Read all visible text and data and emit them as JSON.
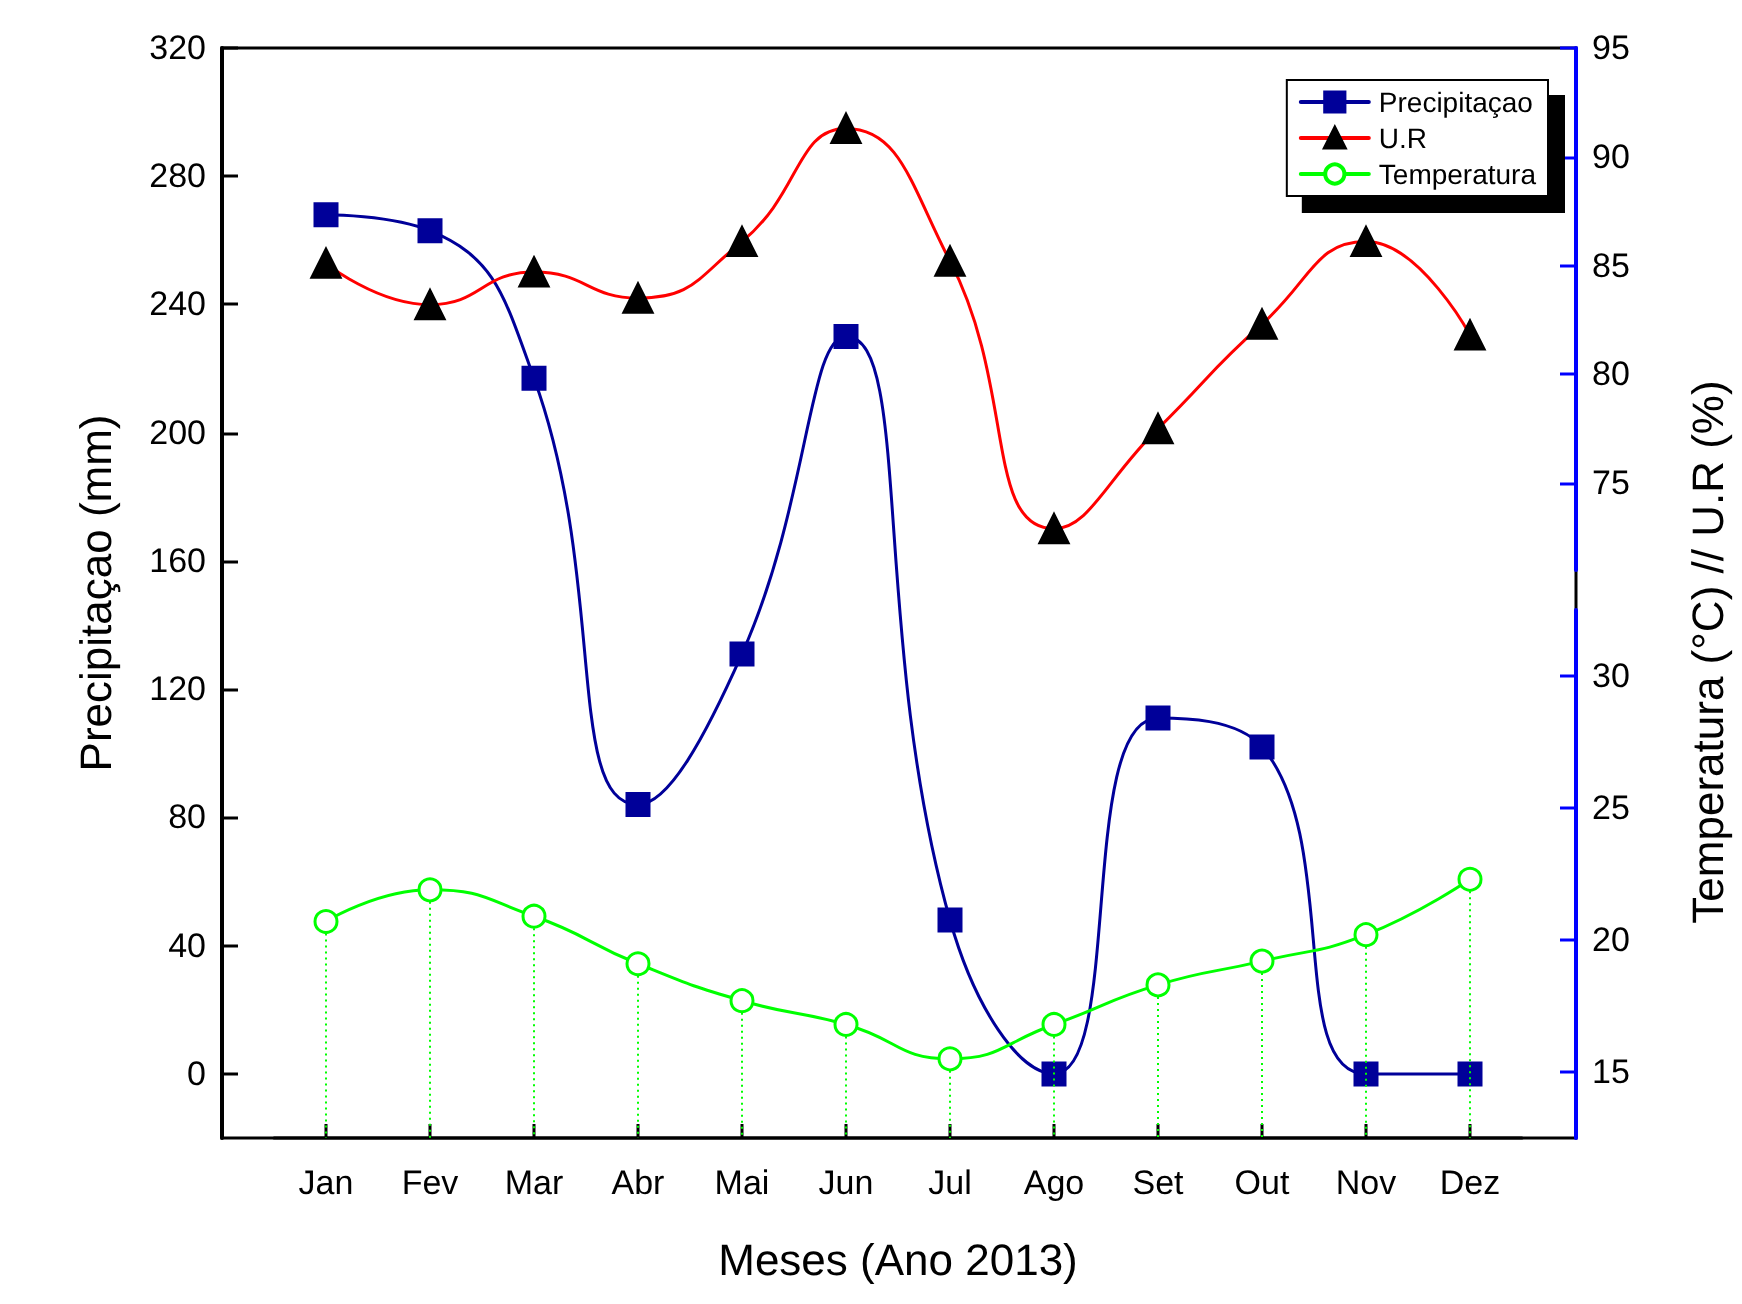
{
  "chart_data": {
    "type": "line",
    "xlabel": "Meses (Ano 2013)",
    "ylabel": "Precipitaçao (mm)",
    "y2label": "Temperatura (°C) // U.R (%)",
    "categories": [
      "Jan",
      "Fev",
      "Mar",
      "Abr",
      "Mai",
      "Jun",
      "Jul",
      "Ago",
      "Set",
      "Out",
      "Nov",
      "Dez"
    ],
    "series": [
      {
        "name": "Precipitaçao",
        "color": "#000099",
        "marker": "square",
        "values": [
          268,
          263,
          217,
          84,
          131,
          230,
          48,
          0,
          111,
          102,
          0,
          0
        ]
      },
      {
        "name": "U.R",
        "color": "#ff0000",
        "marker": "triangle",
        "axis": "y3",
        "values": [
          85.1,
          83.2,
          84.7,
          83.5,
          86.1,
          91.3,
          85.2,
          72.9,
          77.5,
          82.3,
          86.1,
          81.8
        ]
      },
      {
        "name": "Temperatura",
        "color": "#00ff00",
        "marker": "circle",
        "axis": "y2",
        "values": [
          20.7,
          21.9,
          20.9,
          19.1,
          17.7,
          16.8,
          15.5,
          16.8,
          18.3,
          19.2,
          20.2,
          22.3
        ]
      }
    ],
    "ylim": [
      -20,
      320
    ],
    "yticks": [
      0,
      40,
      80,
      120,
      160,
      200,
      240,
      280,
      320
    ],
    "y2lim": [
      12.5,
      32.5
    ],
    "y2ticks": [
      15,
      20,
      25,
      30
    ],
    "y3lim": [
      71,
      95
    ],
    "y3ticks": [
      75,
      80,
      85,
      90,
      95
    ],
    "line_style": "solid",
    "grid": false,
    "legend": "top right"
  }
}
